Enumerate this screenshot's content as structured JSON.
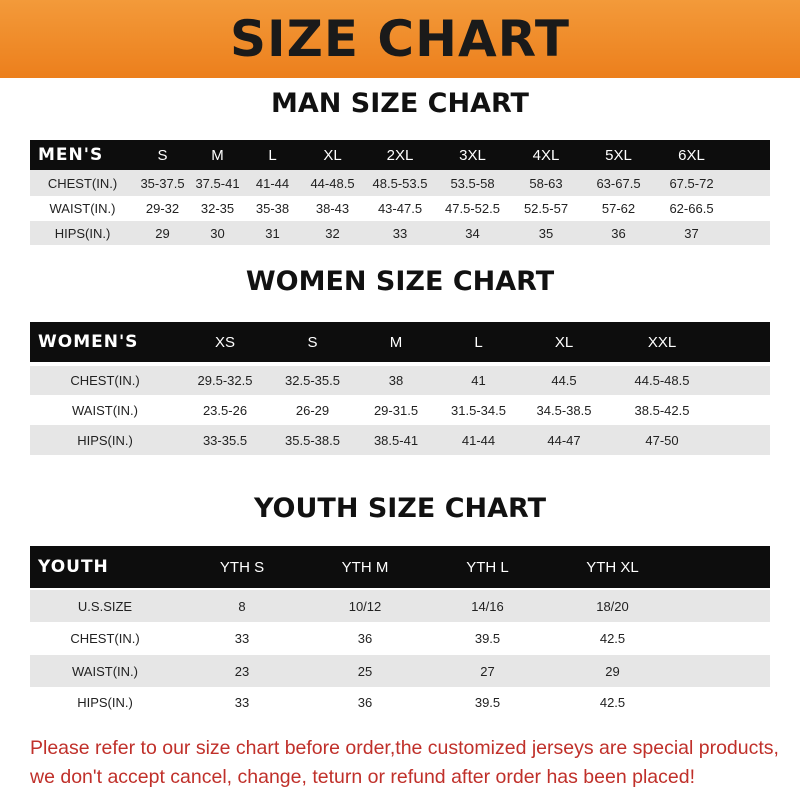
{
  "banner_title": "SIZE CHART",
  "colors": {
    "banner": "#ec7f1c",
    "header_bg": "#0d0d0d",
    "row_alt": "#e6e6e6",
    "note": "#c0302a"
  },
  "men": {
    "title": "MAN SIZE CHART",
    "header": [
      "MEN'S",
      "S",
      "M",
      "L",
      "XL",
      "2XL",
      "3XL",
      "4XL",
      "5XL",
      "6XL"
    ],
    "rows": [
      [
        "CHEST(IN.)",
        "35-37.5",
        "37.5-41",
        "41-44",
        "44-48.5",
        "48.5-53.5",
        "53.5-58",
        "58-63",
        "63-67.5",
        "67.5-72"
      ],
      [
        "WAIST(IN.)",
        "29-32",
        "32-35",
        "35-38",
        "38-43",
        "43-47.5",
        "47.5-52.5",
        "52.5-57",
        "57-62",
        "62-66.5"
      ],
      [
        "HIPS(IN.)",
        "29",
        "30",
        "31",
        "32",
        "33",
        "34",
        "35",
        "36",
        "37"
      ]
    ]
  },
  "women": {
    "title": "WOMEN SIZE CHART",
    "header": [
      "WOMEN'S",
      "XS",
      "S",
      "M",
      "L",
      "XL",
      "XXL"
    ],
    "rows": [
      [
        "CHEST(IN.)",
        "29.5-32.5",
        "32.5-35.5",
        "38",
        "41",
        "44.5",
        "44.5-48.5"
      ],
      [
        "WAIST(IN.)",
        "23.5-26",
        "26-29",
        "29-31.5",
        "31.5-34.5",
        "34.5-38.5",
        "38.5-42.5"
      ],
      [
        "HIPS(IN.)",
        "33-35.5",
        "35.5-38.5",
        "38.5-41",
        "41-44",
        "44-47",
        "47-50"
      ]
    ]
  },
  "youth": {
    "title": "YOUTH SIZE CHART",
    "header": [
      "YOUTH",
      "YTH S",
      "YTH M",
      "YTH L",
      "YTH XL"
    ],
    "rows": [
      [
        "U.S.SIZE",
        "8",
        "10/12",
        "14/16",
        "18/20"
      ],
      [
        "CHEST(IN.)",
        "33",
        "36",
        "39.5",
        "42.5"
      ],
      [
        "WAIST(IN.)",
        "23",
        "25",
        "27",
        "29"
      ],
      [
        "HIPS(IN.)",
        "33",
        "36",
        "39.5",
        "42.5"
      ]
    ]
  },
  "note": {
    "line1": "Please refer to our size chart before order,the customized jerseys are special products,",
    "line2": "we don't accept cancel, change, teturn or refund after order has been placed!"
  }
}
